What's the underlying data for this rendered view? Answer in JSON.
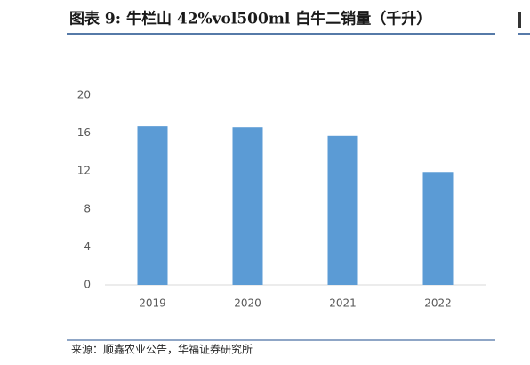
{
  "chart_data": {
    "type": "bar",
    "title": "图表 9:  牛栏山 42%vol500ml 白牛二销量（千升）",
    "categories": [
      "2019",
      "2020",
      "2021",
      "2022"
    ],
    "values": [
      16.7,
      16.6,
      15.7,
      11.9
    ],
    "color": "#5b9bd5",
    "ylim": [
      0,
      20
    ],
    "yticks": [
      0,
      4,
      8,
      12,
      16,
      20
    ],
    "grid": false,
    "source": "来源：顺鑫农业公告，华福证券研究所"
  }
}
